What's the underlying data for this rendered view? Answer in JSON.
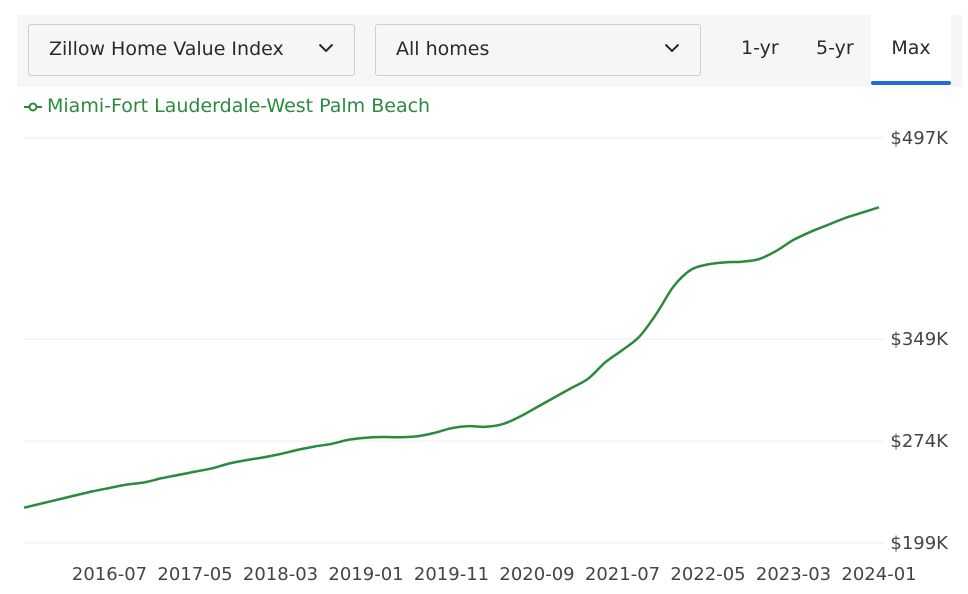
{
  "controls": {
    "metric_select": "Zillow Home Value Index",
    "home_type_select": "All homes",
    "ranges": [
      "1-yr",
      "5-yr",
      "Max"
    ],
    "active_range": "Max",
    "accent_color": "#1d6bdc"
  },
  "chart_data": {
    "type": "line",
    "title": "",
    "xlabel": "",
    "ylabel": "",
    "series": [
      {
        "name": "Miami-Fort Lauderdale-West Palm Beach",
        "color": "#2b8a3e",
        "x": [
          "2015-09",
          "2015-11",
          "2016-01",
          "2016-03",
          "2016-05",
          "2016-07",
          "2016-09",
          "2016-11",
          "2017-01",
          "2017-03",
          "2017-05",
          "2017-07",
          "2017-09",
          "2017-11",
          "2018-01",
          "2018-03",
          "2018-05",
          "2018-07",
          "2018-09",
          "2018-11",
          "2019-01",
          "2019-03",
          "2019-05",
          "2019-07",
          "2019-09",
          "2019-11",
          "2020-01",
          "2020-03",
          "2020-05",
          "2020-07",
          "2020-09",
          "2020-11",
          "2021-01",
          "2021-03",
          "2021-05",
          "2021-07",
          "2021-09",
          "2021-11",
          "2022-01",
          "2022-03",
          "2022-05",
          "2022-07",
          "2022-09",
          "2022-11",
          "2023-01",
          "2023-03",
          "2023-05",
          "2023-07",
          "2023-09",
          "2023-11",
          "2024-01"
        ],
        "values": [
          225,
          228,
          231,
          234,
          237,
          239.5,
          242,
          243.5,
          246.5,
          249,
          251.5,
          254,
          257.5,
          260,
          262,
          264.5,
          267.5,
          270,
          272,
          275,
          276.5,
          277,
          276.8,
          277.5,
          280,
          283.5,
          285,
          284.5,
          286.5,
          292,
          299,
          306,
          313,
          320,
          332,
          341,
          351,
          368,
          388,
          400,
          404,
          405.5,
          406,
          408,
          414,
          422,
          428,
          433,
          438,
          442,
          446
        ]
      }
    ],
    "x_tick_labels": [
      "2016-07",
      "2017-05",
      "2018-03",
      "2019-01",
      "2019-11",
      "2020-09",
      "2021-07",
      "2022-05",
      "2023-03",
      "2024-01"
    ],
    "y_tick_labels": [
      "$497K",
      "$349K",
      "$274K",
      "$199K"
    ],
    "y_tick_values": [
      497,
      349,
      274,
      199
    ],
    "ylim": [
      199,
      497
    ],
    "xlim": [
      "2015-09",
      "2024-01"
    ],
    "grid": true,
    "y_axis_position": "right",
    "legend_placement": "top-left"
  }
}
